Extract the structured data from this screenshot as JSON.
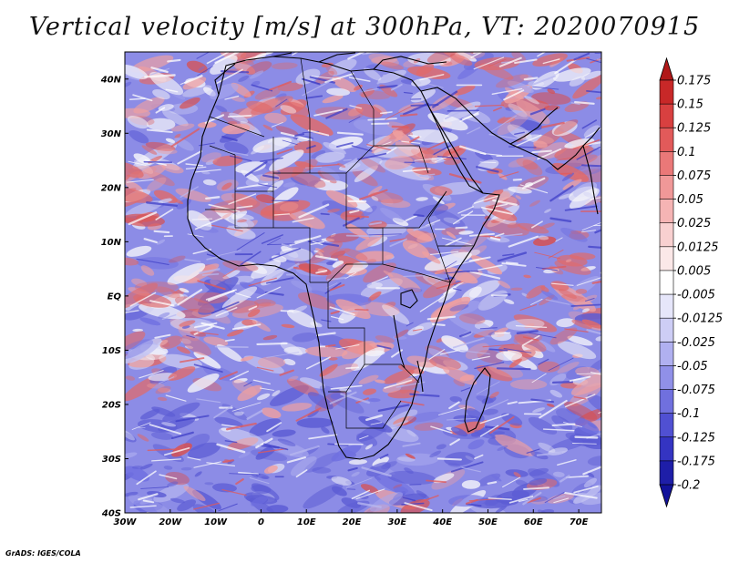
{
  "title": "Vertical velocity [m/s] at 300hPa, VT: 2020070915",
  "credit": "GrADS: IGES/COLA",
  "map": {
    "lat_ticks": [
      "40N",
      "30N",
      "20N",
      "10N",
      "EQ",
      "10S",
      "20S",
      "30S",
      "40S"
    ],
    "lon_ticks": [
      "30W",
      "20W",
      "10W",
      "0",
      "10E",
      "20E",
      "30E",
      "40E",
      "50E",
      "60E",
      "70E"
    ],
    "lat_range": [
      -40,
      45
    ],
    "lon_range": [
      -30,
      75
    ],
    "field_colors": {
      "positive": "#e06a6a",
      "negative": "#6f6fe0",
      "neutral": "#f4f4fa"
    }
  },
  "colorbar": {
    "labels": [
      "0.175",
      "0.15",
      "0.125",
      "0.1",
      "0.075",
      "0.05",
      "0.025",
      "0.0125",
      "0.005",
      "-0.005",
      "-0.0125",
      "-0.025",
      "-0.05",
      "-0.075",
      "-0.1",
      "-0.125",
      "-0.175",
      "-0.2"
    ],
    "colors": [
      "#b01818",
      "#c82828",
      "#d84040",
      "#e25a5a",
      "#ea7878",
      "#f09898",
      "#f5b4b4",
      "#f8d0d0",
      "#fbe8e8",
      "#ffffff",
      "#e6e6fa",
      "#cdcdf5",
      "#b0b0f0",
      "#9090e8",
      "#7070de",
      "#5050d2",
      "#3434c2",
      "#1e1ea8",
      "#12129a"
    ]
  }
}
